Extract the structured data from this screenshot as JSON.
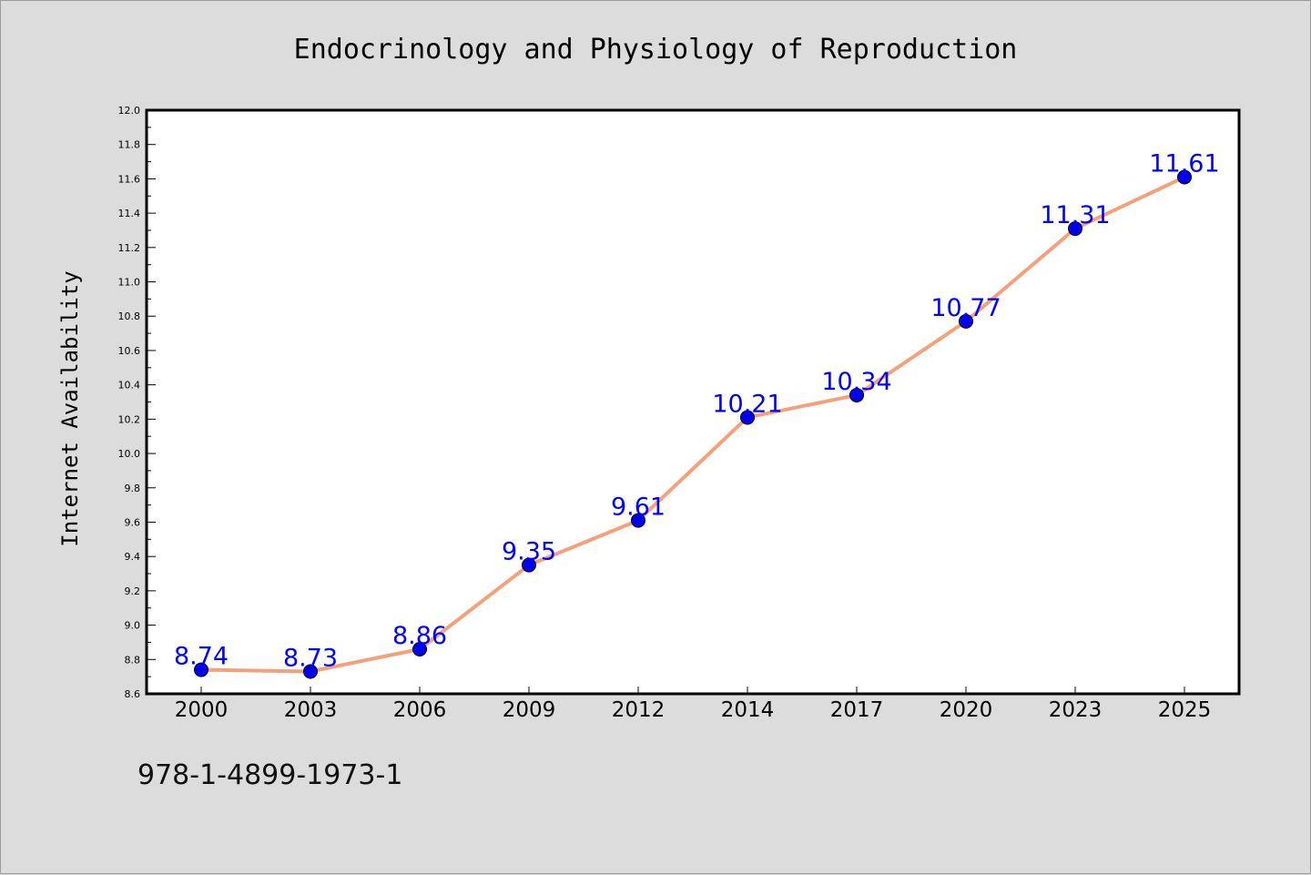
{
  "chart_data": {
    "type": "line",
    "title": "Endocrinology and Physiology of Reproduction",
    "xlabel": "",
    "ylabel": "Internet Availability",
    "categories": [
      "2000",
      "2003",
      "2006",
      "2009",
      "2012",
      "2014",
      "2017",
      "2020",
      "2023",
      "2025"
    ],
    "series": [
      {
        "values": [
          8.74,
          8.73,
          8.86,
          9.35,
          9.61,
          10.21,
          10.34,
          10.77,
          11.31,
          11.61
        ],
        "data_labels": [
          "8.74",
          "8.73",
          "8.86",
          "9.35",
          "9.61",
          "10.21",
          "10.34",
          "10.77",
          "11.31",
          "11.61"
        ],
        "line_color": "#f4a07a",
        "marker_color": "#0000ee"
      }
    ],
    "ylim": [
      8.6,
      12.0
    ],
    "yticks": [
      "8.6",
      "8.8",
      "9.0",
      "9.2",
      "9.4",
      "9.6",
      "9.8",
      "10.0",
      "10.2",
      "10.4",
      "10.6",
      "10.8",
      "11.0",
      "11.2",
      "11.4",
      "11.6",
      "11.8",
      "12.0"
    ],
    "grid": false,
    "legend": "none"
  },
  "footer": {
    "isbn": "978-1-4899-1973-1"
  },
  "colors": {
    "background": "#dcdcdc",
    "plot_background": "#ffffff",
    "data_label": "#0000ff"
  }
}
